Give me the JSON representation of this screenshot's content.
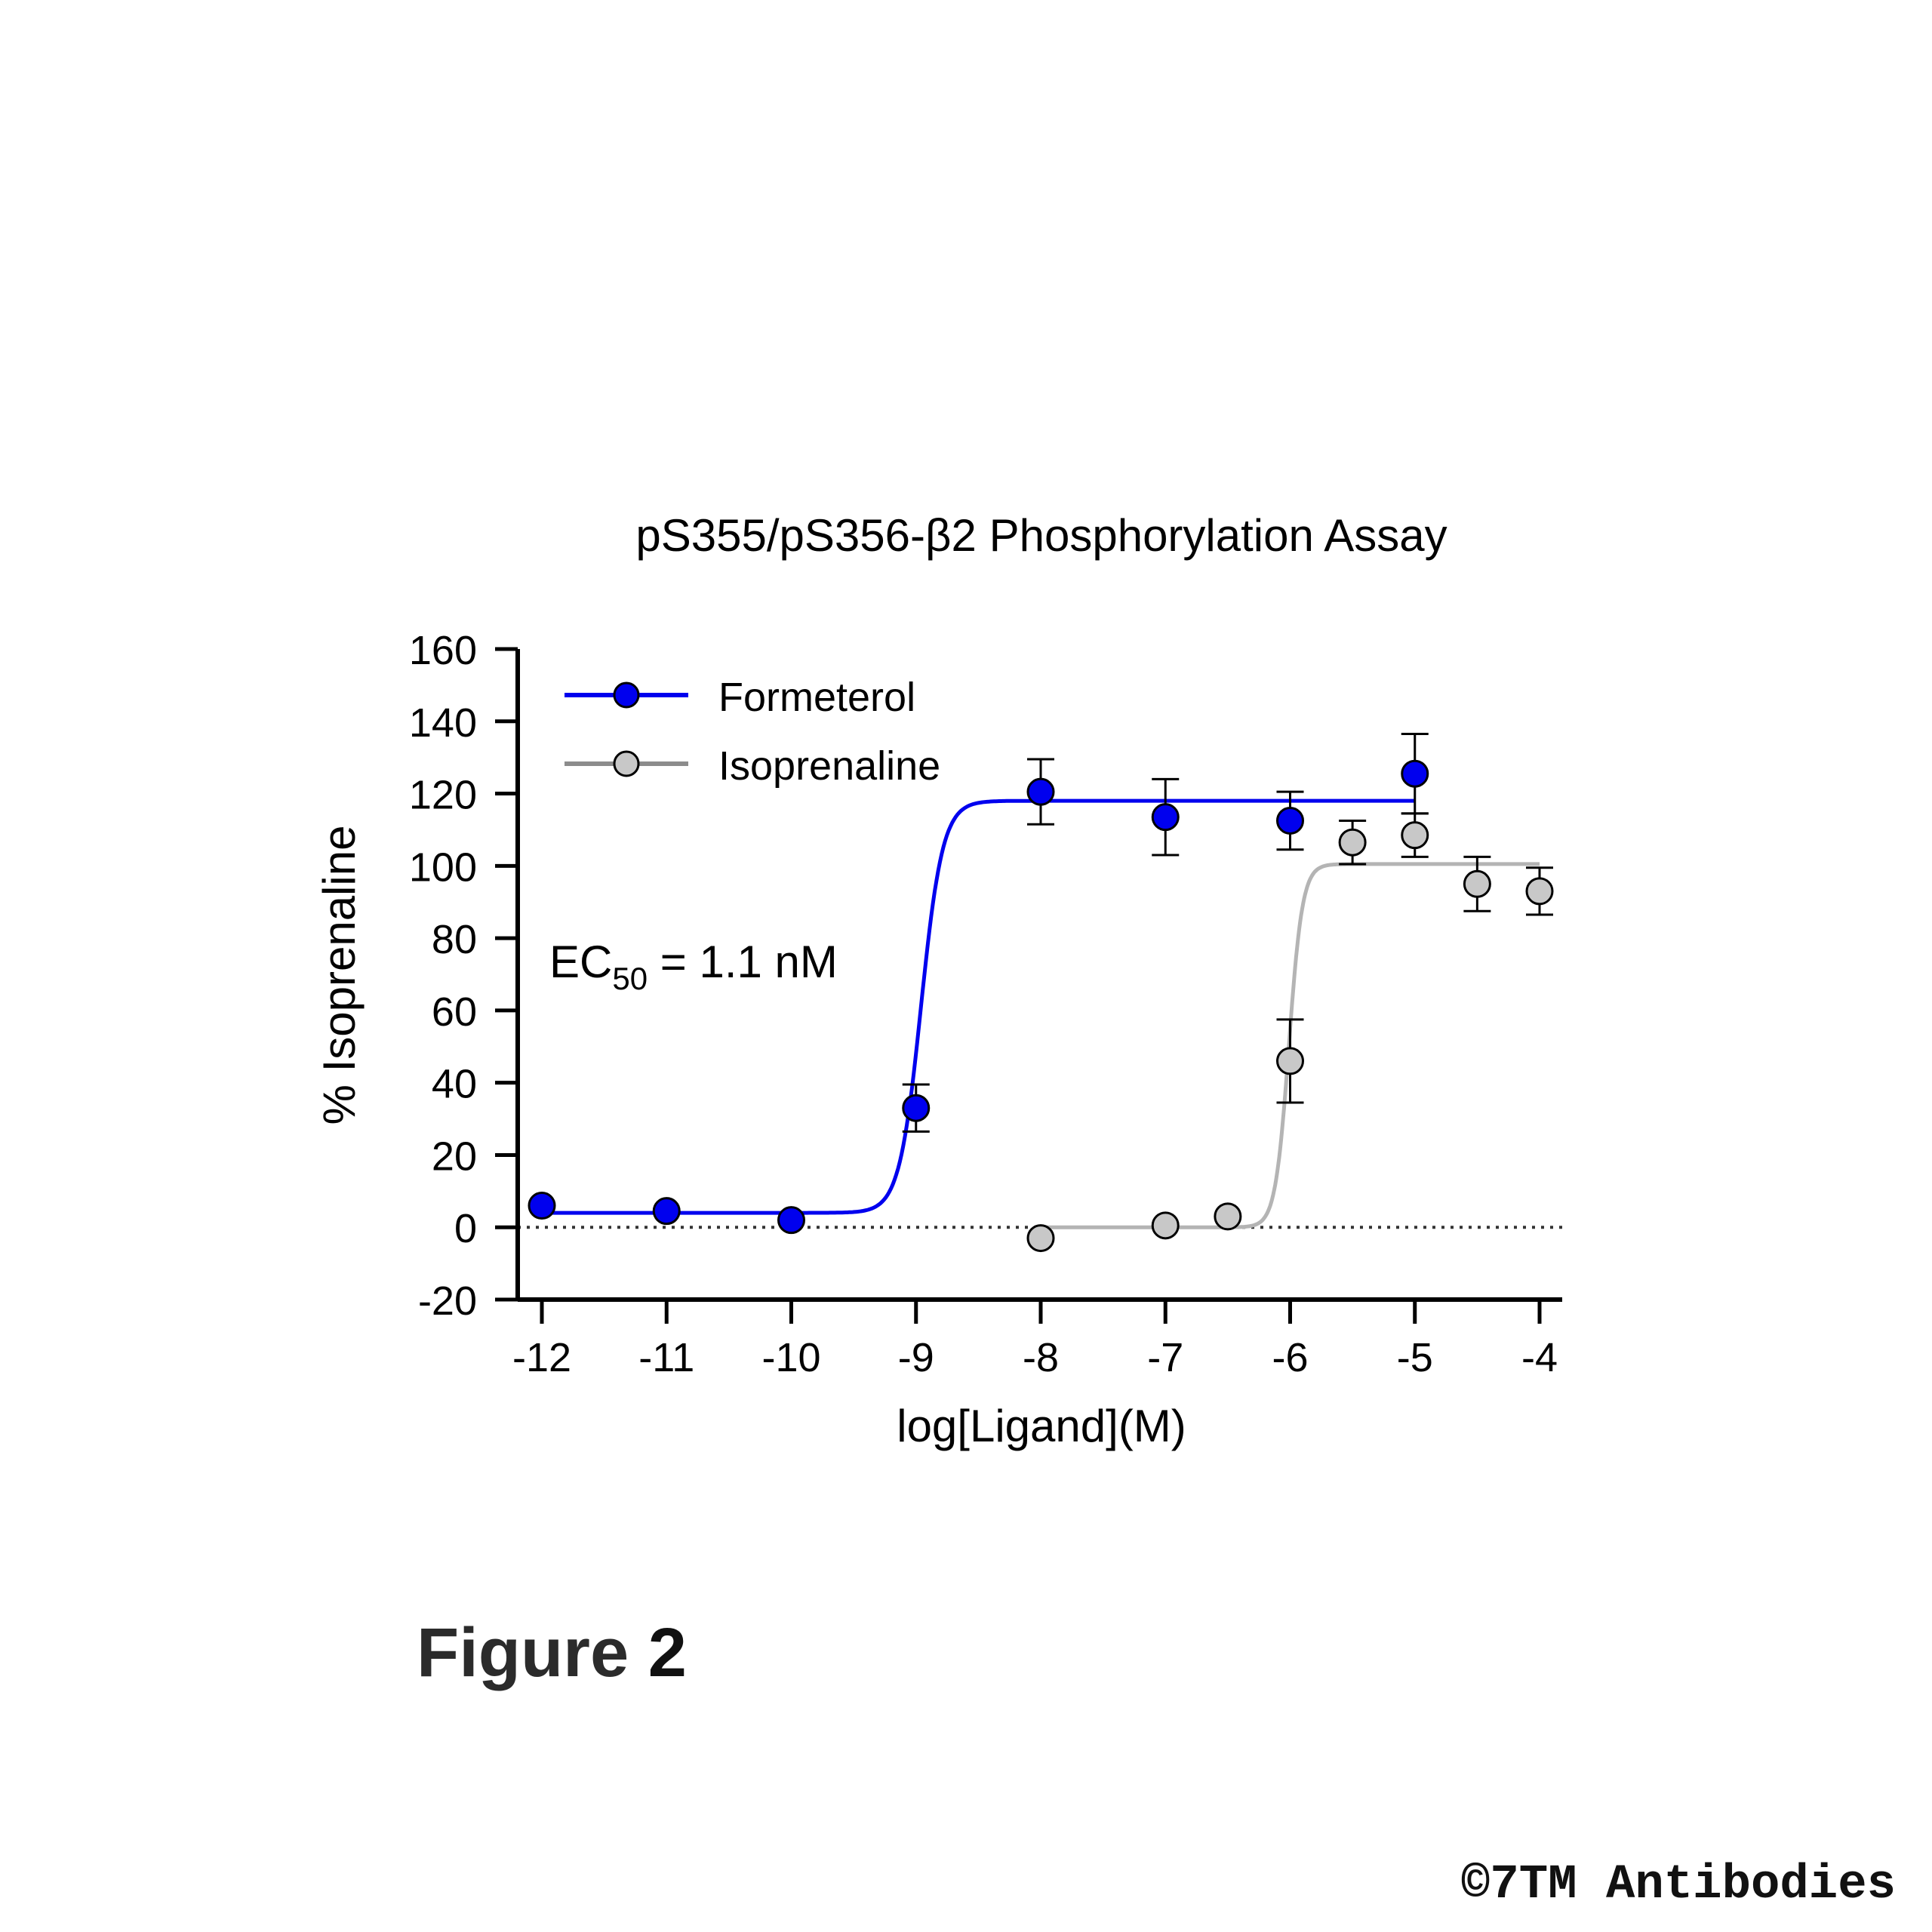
{
  "chart_data": {
    "type": "scatter",
    "title": "pS355/pS356-β2 Phosphorylation Assay",
    "xlabel": "log[Ligand](M)",
    "ylabel": "% Isoprenaline",
    "xlim": [
      -12,
      -4
    ],
    "ylim": [
      -20,
      160
    ],
    "x_ticks": [
      "-12",
      "-11",
      "-10",
      "-9",
      "-8",
      "-7",
      "-6",
      "-5",
      "-4"
    ],
    "y_ticks": [
      "160",
      "140",
      "120",
      "100",
      "80",
      "60",
      "40",
      "20",
      "0",
      "-20"
    ],
    "grid": false,
    "legend_position": "top-left",
    "zero_reference_line": true,
    "series": [
      {
        "name": "Formeterol",
        "color": "#0000ee",
        "points": [
          {
            "x": -12,
            "y": 6,
            "err": 0
          },
          {
            "x": -11,
            "y": 4.5,
            "err": 0
          },
          {
            "x": -10,
            "y": 2,
            "err": 0
          },
          {
            "x": -9,
            "y": 33,
            "err": 6.5
          },
          {
            "x": -8,
            "y": 120.5,
            "err": 9
          },
          {
            "x": -7,
            "y": 113.5,
            "err": 10.5
          },
          {
            "x": -6,
            "y": 112.5,
            "err": 8
          },
          {
            "x": -5,
            "y": 125.5,
            "err": 11
          }
        ],
        "fit": {
          "bottom": 4,
          "top": 118,
          "logEC50": -8.96,
          "hill": 5,
          "x_range": [
            -12,
            -5
          ]
        }
      },
      {
        "name": "Isoprenaline",
        "color": "#8c8c8c",
        "points": [
          {
            "x": -8,
            "y": -3,
            "err": 0
          },
          {
            "x": -7,
            "y": 0.5,
            "err": 0
          },
          {
            "x": -6.5,
            "y": 3,
            "err": 0
          },
          {
            "x": -6,
            "y": 46,
            "err": 11.5
          },
          {
            "x": -5.5,
            "y": 106.5,
            "err": 6
          },
          {
            "x": -5,
            "y": 108.5,
            "err": 6
          },
          {
            "x": -4.5,
            "y": 95,
            "err": 7.5
          },
          {
            "x": -4,
            "y": 93,
            "err": 6.5
          }
        ],
        "fit": {
          "bottom": 0,
          "top": 100.5,
          "logEC50": -6.01,
          "hill": 8,
          "x_range": [
            -8,
            -4
          ]
        }
      }
    ],
    "annotation": {
      "prefix": "EC",
      "subscript": "50",
      "suffix": " = 1.1 nM"
    }
  },
  "figure_label": {
    "word": "Figure",
    "number": "2"
  },
  "copyright": "©7TM Antibodies"
}
